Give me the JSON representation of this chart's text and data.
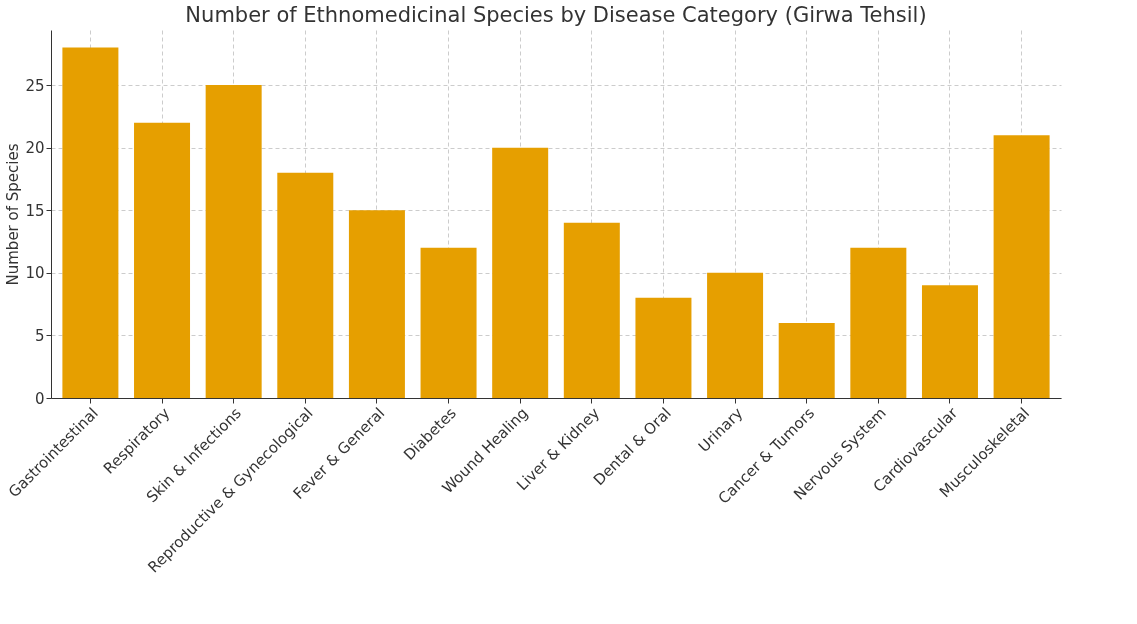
{
  "chart_data": {
    "type": "bar",
    "title": "Number of Ethnomedicinal Species by Disease Category (Girwa Tehsil)",
    "ylabel": "Number of Species",
    "categories": [
      "Gastrointestinal",
      "Respiratory",
      "Skin & Infections",
      "Reproductive & Gynecological",
      "Fever & General",
      "Diabetes",
      "Wound Healing",
      "Liver & Kidney",
      "Dental & Oral",
      "Urinary",
      "Cancer & Tumors",
      "Nervous System",
      "Cardiovascular",
      "Musculoskeletal"
    ],
    "values": [
      28,
      22,
      25,
      18,
      15,
      12,
      20,
      14,
      8,
      10,
      6,
      12,
      9,
      21
    ],
    "color": "#e69f00",
    "ylim": [
      0,
      29.4
    ],
    "yticks": [
      0,
      5,
      10,
      15,
      20,
      25
    ],
    "grid": true
  }
}
